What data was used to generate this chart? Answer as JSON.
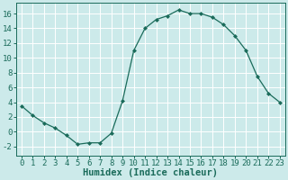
{
  "x": [
    0,
    1,
    2,
    3,
    4,
    5,
    6,
    7,
    8,
    9,
    10,
    11,
    12,
    13,
    14,
    15,
    16,
    17,
    18,
    19,
    20,
    21,
    22,
    23
  ],
  "y": [
    3.5,
    2.2,
    1.2,
    0.5,
    -0.5,
    -1.7,
    -1.5,
    -1.5,
    -0.2,
    4.2,
    11.0,
    14.0,
    15.2,
    15.7,
    16.5,
    16.0,
    16.0,
    15.5,
    14.5,
    13.0,
    11.0,
    7.5,
    5.2,
    4.0
  ],
  "line_color": "#1a6b5a",
  "marker": "D",
  "marker_size": 2.0,
  "bg_color": "#cceaea",
  "grid_color": "#ffffff",
  "xlabel": "Humidex (Indice chaleur)",
  "ylabel": "",
  "xlim": [
    -0.5,
    23.5
  ],
  "ylim": [
    -3.2,
    17.5
  ],
  "yticks": [
    -2,
    0,
    2,
    4,
    6,
    8,
    10,
    12,
    14,
    16
  ],
  "xticks": [
    0,
    1,
    2,
    3,
    4,
    5,
    6,
    7,
    8,
    9,
    10,
    11,
    12,
    13,
    14,
    15,
    16,
    17,
    18,
    19,
    20,
    21,
    22,
    23
  ],
  "tick_fontsize": 6.5,
  "label_fontsize": 7.5,
  "linewidth": 0.9
}
